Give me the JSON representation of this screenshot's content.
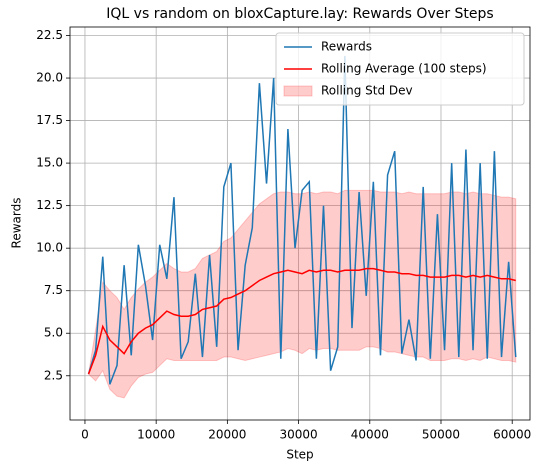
{
  "chart_data": {
    "type": "line",
    "title": "IQL vs random on bloxCapture.lay: Rewards Over Steps",
    "xlabel": "Step",
    "ylabel": "Rewards",
    "x": [
      500,
      1500,
      2500,
      3500,
      4500,
      5500,
      6500,
      7500,
      8500,
      9500,
      10500,
      11500,
      12500,
      13500,
      14500,
      15500,
      16500,
      17500,
      18500,
      19500,
      20500,
      21500,
      22500,
      23500,
      24500,
      25500,
      26500,
      27500,
      28500,
      29500,
      30500,
      31500,
      32500,
      33500,
      34500,
      35500,
      36500,
      37500,
      38500,
      39500,
      40500,
      41500,
      42500,
      43500,
      44500,
      45500,
      46500,
      47500,
      48500,
      49500,
      50500,
      51500,
      52500,
      53500,
      54500,
      55500,
      56500,
      57500,
      58500,
      59500,
      60500
    ],
    "series": [
      {
        "name": "Rewards",
        "color": "#1f77b4",
        "values": [
          2.6,
          4.0,
          9.5,
          2.0,
          3.1,
          9.0,
          3.7,
          10.2,
          7.8,
          4.6,
          10.2,
          8.2,
          13.0,
          3.5,
          4.5,
          8.5,
          3.6,
          9.6,
          4.2,
          13.6,
          15.0,
          4.0,
          9.0,
          11.2,
          19.7,
          13.8,
          20.0,
          3.5,
          17.0,
          10.0,
          13.4,
          13.9,
          3.5,
          12.5,
          2.8,
          4.2,
          21.3,
          5.3,
          13.3,
          7.2,
          13.9,
          3.7,
          14.3,
          15.7,
          3.8,
          5.8,
          3.4,
          13.6,
          3.5,
          12.0,
          4.0,
          15.0,
          3.6,
          15.8,
          4.0,
          15.0,
          3.5,
          15.7,
          3.6,
          9.2,
          3.6
        ]
      },
      {
        "name": "Rolling Average (100 steps)",
        "color": "#ff0000",
        "values": [
          2.6,
          3.7,
          5.4,
          4.6,
          4.2,
          3.8,
          4.5,
          5.0,
          5.3,
          5.5,
          5.9,
          6.3,
          6.1,
          6.0,
          6.0,
          6.1,
          6.4,
          6.5,
          6.6,
          7.0,
          7.1,
          7.3,
          7.5,
          7.8,
          8.1,
          8.3,
          8.5,
          8.6,
          8.7,
          8.6,
          8.5,
          8.7,
          8.6,
          8.7,
          8.7,
          8.6,
          8.7,
          8.7,
          8.7,
          8.8,
          8.8,
          8.7,
          8.6,
          8.6,
          8.5,
          8.5,
          8.4,
          8.4,
          8.3,
          8.3,
          8.3,
          8.4,
          8.4,
          8.3,
          8.4,
          8.3,
          8.4,
          8.3,
          8.2,
          8.2,
          8.1
        ]
      },
      {
        "name": "Rolling Std Dev",
        "color": "#ff0000",
        "band": true,
        "values": [
          0,
          1.5,
          2.6,
          2.9,
          2.9,
          2.6,
          2.6,
          2.6,
          2.7,
          2.8,
          2.8,
          2.8,
          2.7,
          2.6,
          2.6,
          2.7,
          3.0,
          3.1,
          3.2,
          3.4,
          3.5,
          3.8,
          4.1,
          4.3,
          4.5,
          4.6,
          4.7,
          4.7,
          4.6,
          4.6,
          4.7,
          4.6,
          4.6,
          4.6,
          4.6,
          4.6,
          4.7,
          4.7,
          4.7,
          4.6,
          4.6,
          4.6,
          4.7,
          4.7,
          4.7,
          4.8,
          4.8,
          4.8,
          4.9,
          4.9,
          4.9,
          4.9,
          4.9,
          4.9,
          4.9,
          4.9,
          4.8,
          4.8,
          4.8,
          4.8,
          4.8
        ]
      }
    ],
    "xlim": [
      -2100,
      62500
    ],
    "ylim": [
      -0.1,
      23.0
    ],
    "xticks": [
      0,
      10000,
      20000,
      30000,
      40000,
      50000,
      60000
    ],
    "yticks": [
      2.5,
      {
        "value": 5,
        "label": "5.0"
      },
      7.5,
      {
        "value": 10,
        "label": "10.0"
      },
      12.5,
      {
        "value": 15,
        "label": "15.0"
      },
      17.5,
      {
        "value": 20,
        "label": "20.0"
      },
      22.5
    ],
    "grid": true,
    "legend": "upper right"
  }
}
